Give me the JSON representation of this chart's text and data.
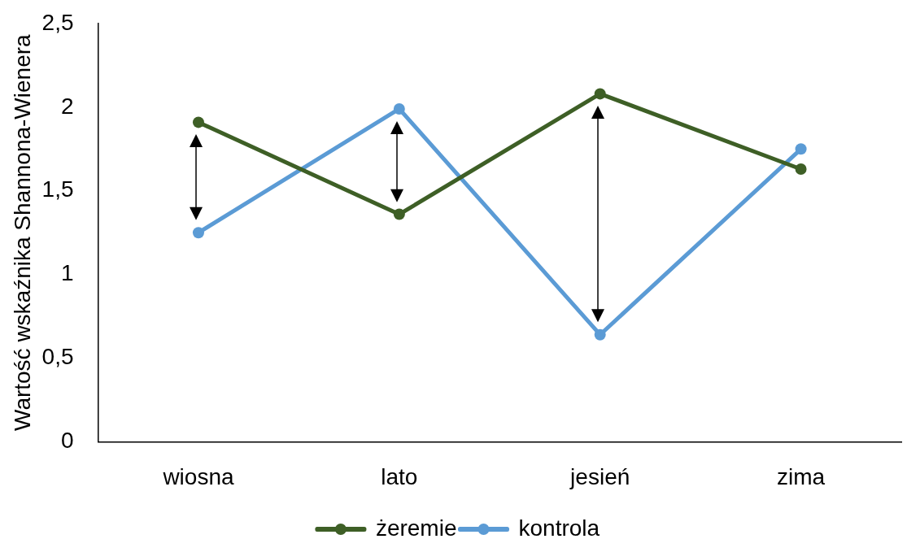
{
  "chart_data": {
    "type": "line",
    "ylabel": "Wartość wskaźnika Shannona-Wienera",
    "categories": [
      "wiosna",
      "lato",
      "jesień",
      "zima"
    ],
    "series": [
      {
        "name": "żeremie",
        "color": "#3e5f26",
        "values": [
          1.91,
          1.36,
          2.08,
          1.63
        ]
      },
      {
        "name": "kontrola",
        "color": "#5b9bd5",
        "values": [
          1.25,
          1.99,
          0.64,
          1.75
        ]
      }
    ],
    "ylim": [
      0,
      2.5
    ],
    "yticks": [
      0,
      {
        "value": 0.5,
        "label": "0,5"
      },
      1,
      {
        "value": 1.5,
        "label": "1,5"
      },
      2,
      {
        "value": 2.5,
        "label": "2,5"
      }
    ],
    "grid": false,
    "legend": "bottom",
    "marker": "circle",
    "line_style": "solid"
  }
}
